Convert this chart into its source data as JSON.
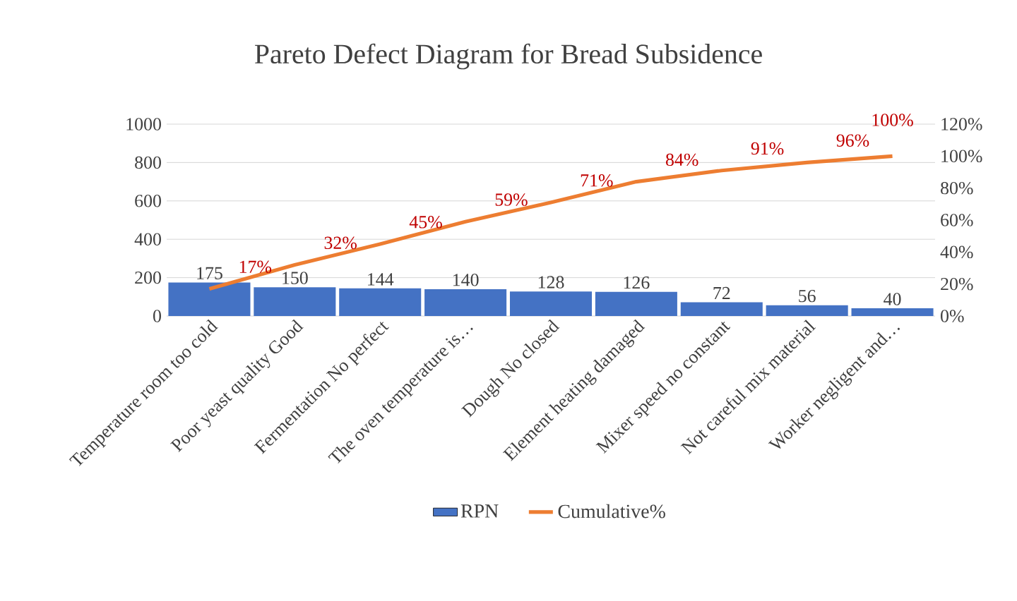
{
  "chart_data": {
    "type": "bar",
    "title": "Pareto Defect Diagram for Bread Subsidence",
    "categories": [
      "Temperature room too cold",
      "Poor yeast quality Good",
      "Fermentation No perfect",
      "The oven temperature is…",
      "Dough No closed",
      "Element heating damaged",
      "Mixer speed no constant",
      "Not careful mix material",
      "Worker negligent and…"
    ],
    "series": [
      {
        "name": "RPN",
        "color": "#4472c4",
        "values": [
          175,
          150,
          144,
          140,
          128,
          126,
          72,
          56,
          40
        ],
        "value_labels": [
          "175",
          "150",
          "144",
          "140",
          "128",
          "126",
          "72",
          "56",
          "40"
        ]
      },
      {
        "name": "Cumulative%",
        "type": "line",
        "axis": "y2",
        "color": "#ed7d31",
        "values": [
          17,
          32,
          45,
          59,
          71,
          84,
          91,
          96,
          100
        ],
        "value_labels": [
          "17%",
          "32%",
          "45%",
          "59%",
          "71%",
          "84%",
          "91%",
          "96%",
          "100%"
        ]
      }
    ],
    "ylim": [
      0,
      1000
    ],
    "yticks": [
      0,
      200,
      400,
      600,
      800,
      1000
    ],
    "y2lim": [
      0,
      120
    ],
    "y2ticks": [
      {
        "value": 0,
        "label": "0%"
      },
      {
        "value": 20,
        "label": "20%"
      },
      {
        "value": 40,
        "label": "40%"
      },
      {
        "value": 60,
        "label": "60%"
      },
      {
        "value": 80,
        "label": "80%"
      },
      {
        "value": 100,
        "label": "100%"
      },
      {
        "value": 120,
        "label": "120%"
      }
    ],
    "grid": "y",
    "legend": "bottom"
  }
}
